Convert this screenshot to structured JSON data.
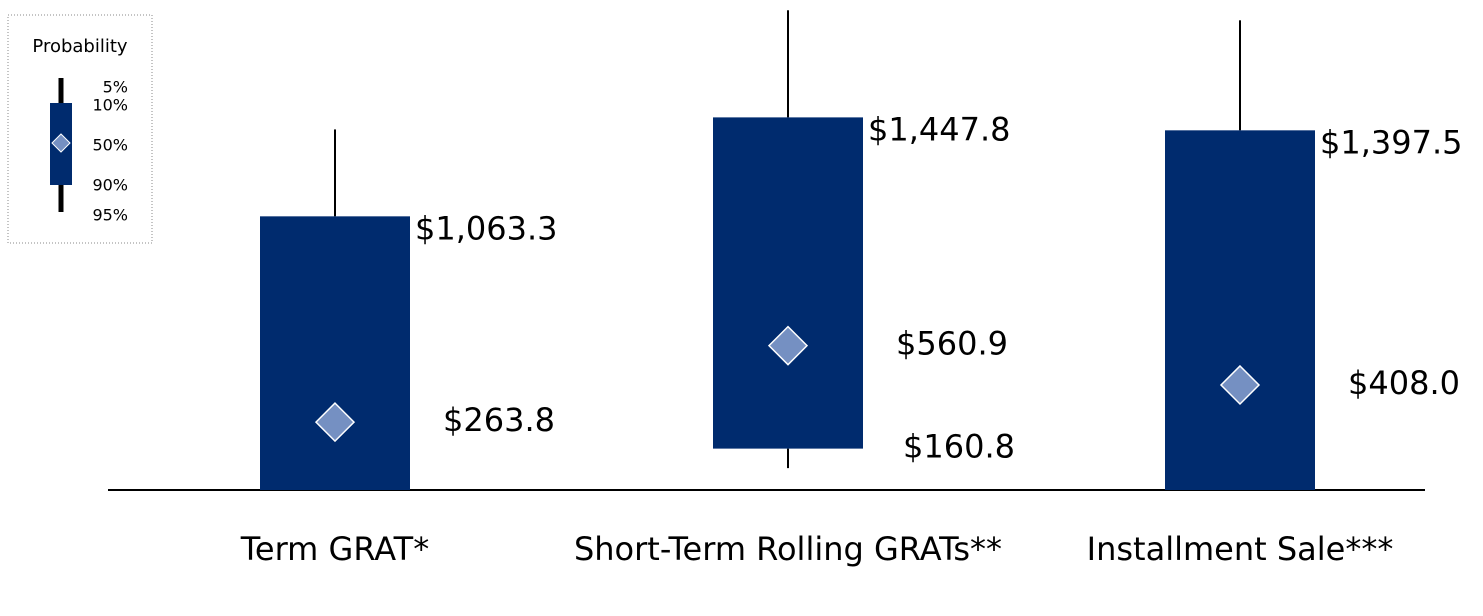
{
  "chart_data": {
    "type": "box",
    "legend_title": "Probability",
    "categories": [
      "Term GRAT*",
      "Short-Term Rolling GRATs**",
      "Installment Sale***"
    ],
    "series": [
      {
        "name": "5%",
        "values": [
          0,
          85,
          0
        ]
      },
      {
        "name": "10%",
        "values": [
          0,
          160.8,
          0
        ],
        "value_labels": [
          null,
          "$160.8",
          null
        ]
      },
      {
        "name": "50%",
        "values": [
          263.8,
          560.9,
          408.0
        ],
        "value_labels": [
          "$263.8",
          "$560.9",
          "$408.0"
        ]
      },
      {
        "name": "90%",
        "values": [
          1063.3,
          1447.8,
          1397.5
        ],
        "value_labels": [
          "$1,063.3",
          "$1,447.8",
          "$1,397.5"
        ]
      },
      {
        "name": "95%",
        "values": [
          1401,
          1864,
          1825
        ]
      }
    ],
    "box_color": "#002b6e",
    "median_color": "#7590c2",
    "ylim": [
      0,
      1900
    ]
  }
}
